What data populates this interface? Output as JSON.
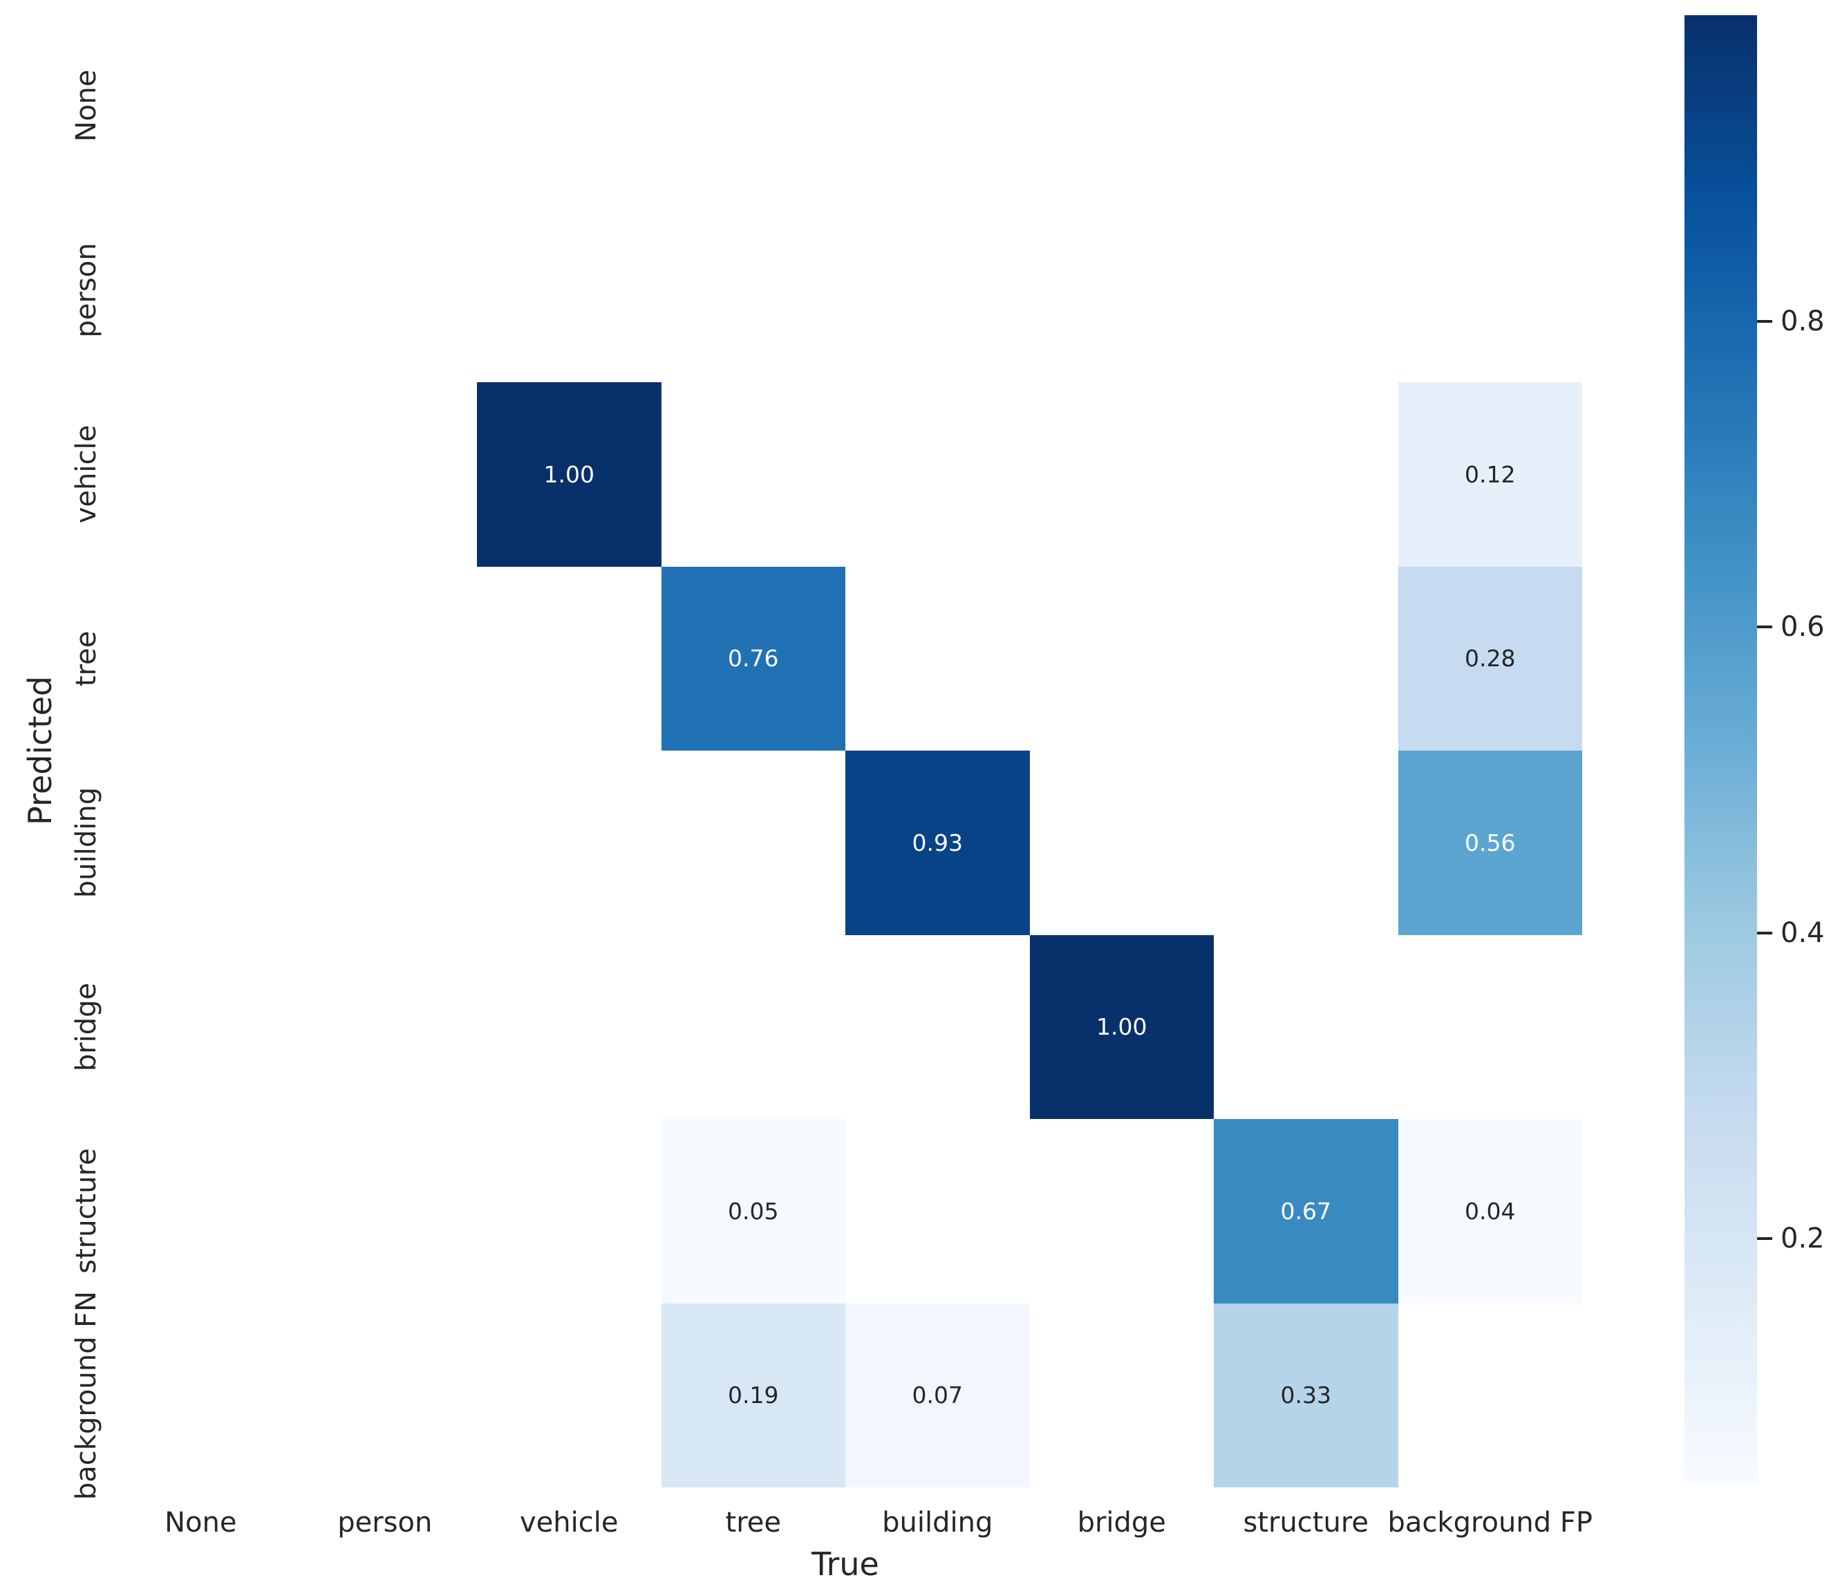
{
  "figure": {
    "background": "#ffffff"
  },
  "chart_data": {
    "type": "heatmap",
    "title": "",
    "xlabel": "True",
    "ylabel": "Predicted",
    "x_categories": [
      "None",
      "person",
      "vehicle",
      "tree",
      "building",
      "bridge",
      "structure",
      "background FP"
    ],
    "y_categories": [
      "None",
      "person",
      "vehicle",
      "tree",
      "building",
      "bridge",
      "structure",
      "background FN"
    ],
    "matrix": [
      [
        null,
        null,
        null,
        null,
        null,
        null,
        null,
        null
      ],
      [
        null,
        null,
        null,
        null,
        null,
        null,
        null,
        null
      ],
      [
        null,
        null,
        1.0,
        null,
        null,
        null,
        null,
        0.12
      ],
      [
        null,
        null,
        null,
        0.76,
        null,
        null,
        null,
        0.28
      ],
      [
        null,
        null,
        null,
        null,
        0.93,
        null,
        null,
        0.56
      ],
      [
        null,
        null,
        null,
        null,
        null,
        1.0,
        null,
        null
      ],
      [
        null,
        null,
        null,
        0.05,
        null,
        null,
        0.67,
        0.04
      ],
      [
        null,
        null,
        null,
        0.19,
        0.07,
        null,
        0.33,
        null
      ]
    ],
    "annotations_decimals": 2,
    "grid": false,
    "legend": false,
    "colormap": {
      "name": "Blues",
      "vmin": 0.04,
      "vmax": 1.0,
      "anchors": [
        "#f7fbff",
        "#deebf7",
        "#c6dbef",
        "#9ecae1",
        "#6baed6",
        "#4292c6",
        "#2171b5",
        "#08519c",
        "#08306b"
      ]
    },
    "colorbar": {
      "ticks": [
        0.8,
        0.6,
        0.4,
        0.2
      ],
      "tick_labels": [
        "0.8",
        "0.6",
        "0.4",
        "0.2"
      ]
    },
    "text_colors": {
      "on_dark": "#ffffff",
      "on_light": "#262626",
      "axis": "#262626"
    },
    "empty_cell_color": "#ffffff"
  }
}
